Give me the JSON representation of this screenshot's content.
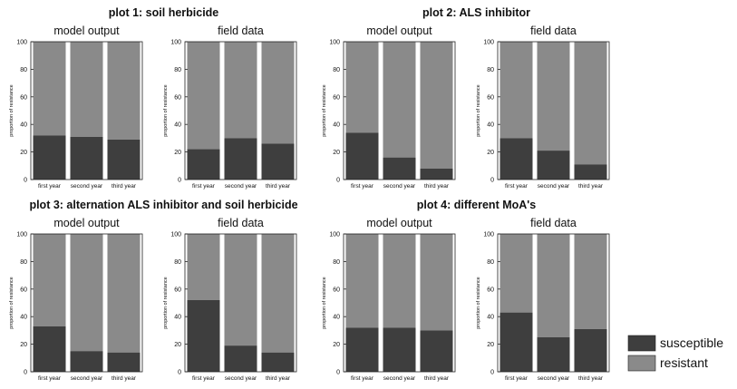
{
  "chart_data": {
    "type": "bar",
    "stacked": true,
    "categories": [
      "first year",
      "second year",
      "third year"
    ],
    "ylabel": "proportion of resistance",
    "ylim": [
      0,
      100
    ],
    "yticks": [
      0,
      20,
      40,
      60,
      80,
      100
    ],
    "colors": {
      "susceptible": "#3e3e3e",
      "resistant": "#8a8a8a"
    },
    "legend": {
      "position": "bottom-right",
      "entries": [
        {
          "key": "susceptible",
          "label": "susceptible"
        },
        {
          "key": "resistant",
          "label": "resistant"
        }
      ]
    },
    "plots": [
      {
        "title": "plot 1: soil herbicide",
        "panels": [
          {
            "subtitle": "model output",
            "susceptible": [
              32,
              31,
              29
            ]
          },
          {
            "subtitle": "field data",
            "susceptible": [
              22,
              30,
              26
            ]
          }
        ]
      },
      {
        "title": "plot 2: ALS inhibitor",
        "panels": [
          {
            "subtitle": "model output",
            "susceptible": [
              34,
              16,
              8
            ]
          },
          {
            "subtitle": "field data",
            "susceptible": [
              30,
              21,
              11
            ]
          }
        ]
      },
      {
        "title": "plot 3: alternation ALS inhibitor and soil herbicide",
        "panels": [
          {
            "subtitle": "model output",
            "susceptible": [
              33,
              15,
              14
            ]
          },
          {
            "subtitle": "field data",
            "susceptible": [
              52,
              19,
              14
            ]
          }
        ]
      },
      {
        "title": "plot 4: different MoA's",
        "panels": [
          {
            "subtitle": "model output",
            "susceptible": [
              32,
              32,
              30
            ]
          },
          {
            "subtitle": "field data",
            "susceptible": [
              43,
              25,
              31
            ]
          }
        ]
      }
    ]
  }
}
